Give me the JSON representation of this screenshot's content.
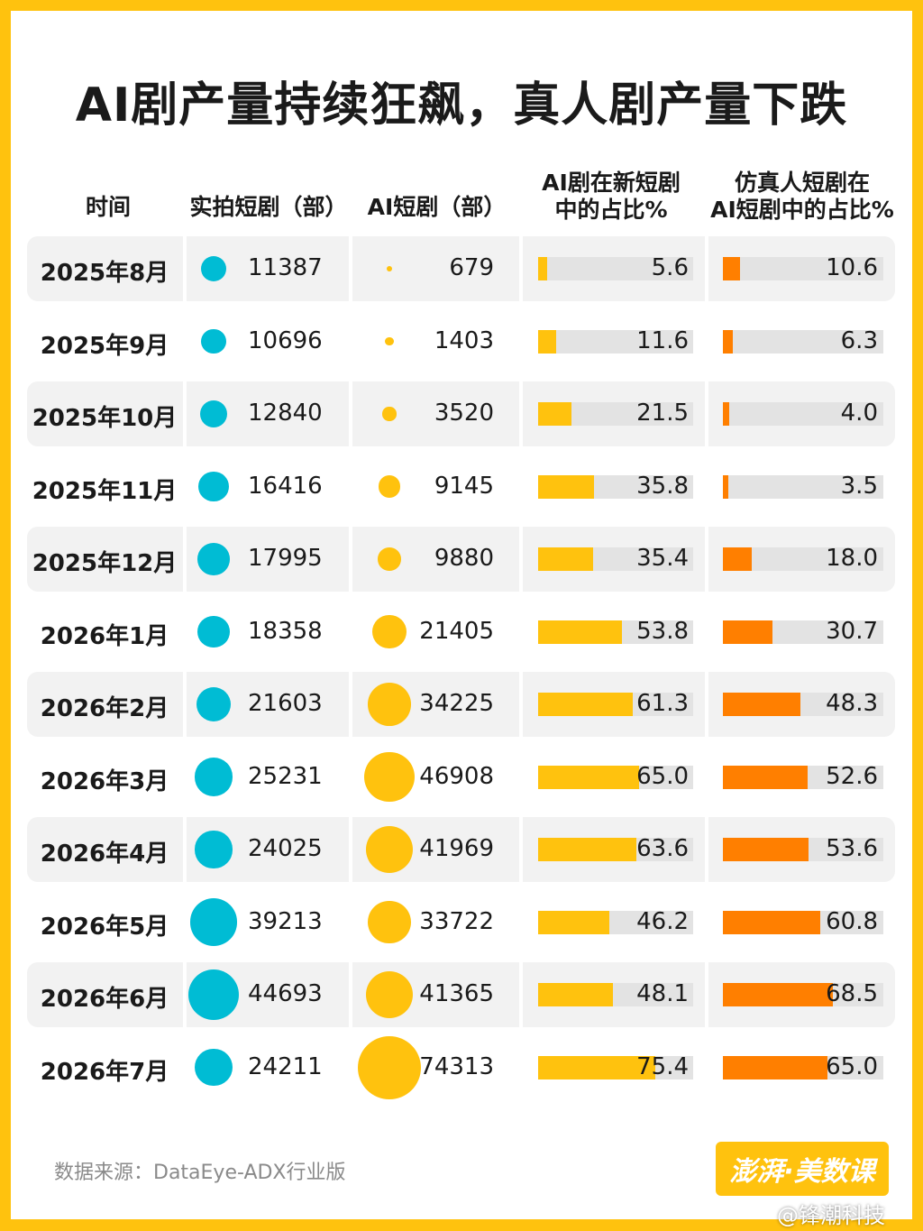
{
  "title": "AI剧产量持续狂飙，真人剧产量下跌",
  "headers": {
    "time": "时间",
    "real": "实拍短剧（部）",
    "ai": "AI短剧（部）",
    "ai_share_line1": "AI剧在新短剧",
    "ai_share_line2": "中的占比%",
    "sim_share_line1": "仿真人短剧在",
    "sim_share_line2": "AI短剧中的占比%"
  },
  "colors": {
    "real": "#00BCD4",
    "ai": "#FFC20E",
    "ai_share": "#FFC20E",
    "sim_share": "#FF7F00",
    "track": "#E3E3E3"
  },
  "chart_data": {
    "type": "table",
    "columns": [
      "时间",
      "实拍短剧（部）",
      "AI短剧（部）",
      "AI剧在新短剧中的占比%",
      "仿真人短剧在AI短剧中的占比%"
    ],
    "rows": [
      {
        "date": "2025年8月",
        "real": "11387",
        "ai": "679",
        "ai_share": "5.6",
        "sim_share": "10.6"
      },
      {
        "date": "2025年9月",
        "real": "10696",
        "ai": "1403",
        "ai_share": "11.6",
        "sim_share": "6.3"
      },
      {
        "date": "2025年10月",
        "real": "12840",
        "ai": "3520",
        "ai_share": "21.5",
        "sim_share": "4.0"
      },
      {
        "date": "2025年11月",
        "real": "16416",
        "ai": "9145",
        "ai_share": "35.8",
        "sim_share": "3.5"
      },
      {
        "date": "2025年12月",
        "real": "17995",
        "ai": "9880",
        "ai_share": "35.4",
        "sim_share": "18.0"
      },
      {
        "date": "2026年1月",
        "real": "18358",
        "ai": "21405",
        "ai_share": "53.8",
        "sim_share": "30.7"
      },
      {
        "date": "2026年2月",
        "real": "21603",
        "ai": "34225",
        "ai_share": "61.3",
        "sim_share": "48.3"
      },
      {
        "date": "2026年3月",
        "real": "25231",
        "ai": "46908",
        "ai_share": "65.0",
        "sim_share": "52.6"
      },
      {
        "date": "2026年4月",
        "real": "24025",
        "ai": "41969",
        "ai_share": "63.6",
        "sim_share": "53.6"
      },
      {
        "date": "2026年5月",
        "real": "39213",
        "ai": "33722",
        "ai_share": "46.2",
        "sim_share": "60.8"
      },
      {
        "date": "2026年6月",
        "real": "44693",
        "ai": "41365",
        "ai_share": "48.1",
        "sim_share": "68.5"
      },
      {
        "date": "2026年7月",
        "real": "24211",
        "ai": "74313",
        "ai_share": "75.4",
        "sim_share": "65.0"
      }
    ]
  },
  "source": "数据来源：DataEye-ADX行业版",
  "logo": "澎湃·美数课",
  "watermark": "@锋潮科技"
}
